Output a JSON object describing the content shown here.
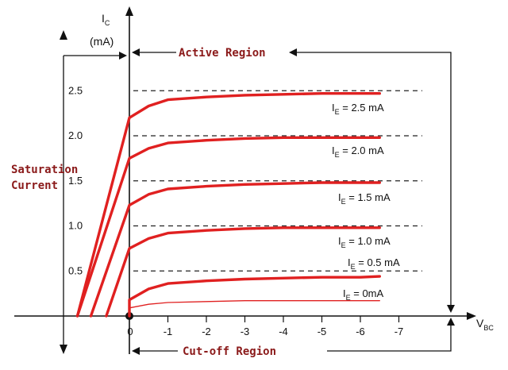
{
  "chart_data": {
    "type": "line",
    "title": "",
    "xlabel": "V",
    "xlabel_sub": "BC",
    "ylabel": "I",
    "ylabel_sub": "C",
    "ylabel_unit": "(mA)",
    "x_ticks": [
      "0",
      "-1",
      "-2",
      "-3",
      "-4",
      "-5",
      "-6",
      "-7"
    ],
    "y_ticks": [
      "0.5",
      "1.0",
      "1.5",
      "2.0",
      "2.5"
    ],
    "ylim": [
      0,
      2.8
    ],
    "regions": {
      "active": "Active Region",
      "saturation_line1": "Saturation",
      "saturation_line2": "Current",
      "cutoff": "Cut-off Region"
    },
    "reference_levels": [
      0.5,
      1.0,
      1.5,
      2.0,
      2.5
    ],
    "series": [
      {
        "name": "2.5 mA",
        "label_var": "I",
        "label_sub": "E",
        "label_rest": " = 2.5 mA",
        "x0": 1.35,
        "y": [
          0,
          2.2,
          2.33,
          2.4,
          2.43,
          2.45,
          2.46,
          2.47,
          2.47,
          2.47
        ]
      },
      {
        "name": "2.0 mA",
        "label_var": "I",
        "label_sub": "E",
        "label_rest": " = 2.0 mA",
        "x0": 1.35,
        "y": [
          0,
          1.75,
          1.86,
          1.92,
          1.95,
          1.97,
          1.98,
          1.98,
          1.98,
          1.98
        ]
      },
      {
        "name": "1.5 mA",
        "label_var": "I",
        "label_sub": "E",
        "label_rest": " = 1.5 mA",
        "x0": 1.0,
        "y": [
          0,
          1.23,
          1.35,
          1.41,
          1.44,
          1.46,
          1.47,
          1.48,
          1.48,
          1.48
        ]
      },
      {
        "name": "1.0 mA",
        "label_var": "I",
        "label_sub": "E",
        "label_rest": " = 1.0 mA",
        "x0": 0.6,
        "y": [
          0,
          0.75,
          0.86,
          0.92,
          0.95,
          0.97,
          0.98,
          0.98,
          0.98,
          0.98
        ]
      },
      {
        "name": "0.5 mA",
        "label_var": "I",
        "label_sub": "E",
        "label_rest": " = 0.5 mA",
        "x0": 0.0,
        "y": [
          0,
          0.18,
          0.3,
          0.36,
          0.39,
          0.41,
          0.42,
          0.43,
          0.43,
          0.44
        ]
      },
      {
        "name": "0mA",
        "label_var": "I",
        "label_sub": "E",
        "label_rest": " = 0mA",
        "x0": 0.0,
        "y": [
          0,
          0.09,
          0.13,
          0.15,
          0.16,
          0.17,
          0.17,
          0.17,
          0.17,
          0.17
        ]
      }
    ],
    "series_x": [
      0,
      -0.1,
      -0.5,
      -1,
      -2,
      -3,
      -4,
      -5,
      -6,
      -6.5
    ],
    "colors": {
      "curve": "#e02020",
      "region_text": "#8b1a1a",
      "axis": "#111111"
    }
  }
}
